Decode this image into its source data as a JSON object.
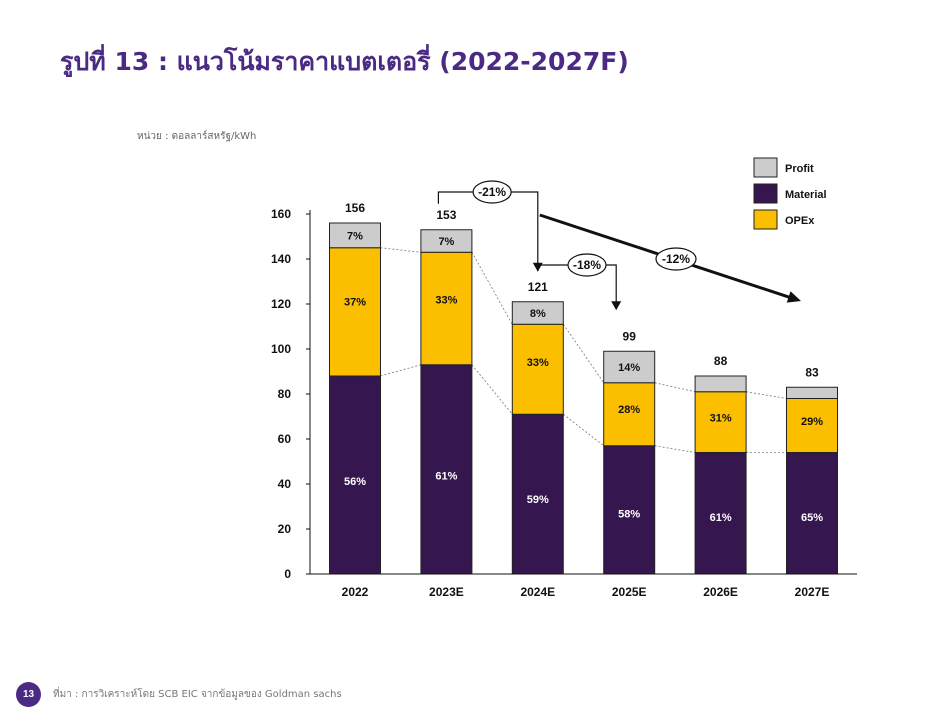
{
  "page": {
    "title": "รูปที่ 13 : แนวโน้มราคาแบตเตอรี่ (2022-2027F)",
    "unit_note": "หน่วย : ดอลลาร์สหรัฐ/kWh",
    "source": "ที่มา : การวิเคราะห์โดย SCB EIC จากข้อมูลของ Goldman sachs",
    "page_number": "13"
  },
  "chart_data": {
    "type": "bar",
    "stacked": true,
    "title": "",
    "xlabel": "",
    "ylabel": "",
    "categories": [
      "2022",
      "2023E",
      "2024E",
      "2025E",
      "2026E",
      "2027E"
    ],
    "ylim": [
      0,
      160
    ],
    "yticks": [
      0,
      20,
      40,
      60,
      80,
      100,
      120,
      140,
      160
    ],
    "totals": [
      156,
      153,
      121,
      99,
      88,
      83
    ],
    "series": [
      {
        "name": "Material",
        "color": "#35164f",
        "values": [
          88,
          93,
          71,
          57,
          54,
          54
        ],
        "labels": [
          "56%",
          "61%",
          "59%",
          "58%",
          "61%",
          "65%"
        ]
      },
      {
        "name": "OPEx",
        "color": "#fbbf00",
        "values": [
          57,
          50,
          40,
          28,
          27,
          24
        ],
        "labels": [
          "37%",
          "33%",
          "33%",
          "28%",
          "31%",
          "29%"
        ]
      },
      {
        "name": "Profit",
        "color": "#cccccc",
        "values": [
          11,
          10,
          10,
          14,
          7,
          5
        ],
        "labels": [
          "7%",
          "7%",
          "8%",
          "14%",
          "",
          ""
        ]
      }
    ],
    "legend": {
      "position": "top-right",
      "order": [
        "Profit",
        "Material",
        "OPEx"
      ]
    },
    "annotations": [
      {
        "label": "-21%",
        "from": "2023E",
        "to": "2024E"
      },
      {
        "label": "-18%",
        "from": "2024E",
        "to": "2025E"
      },
      {
        "label": "-12%",
        "from": "2024E",
        "to": "2027E"
      }
    ],
    "grid": false
  }
}
